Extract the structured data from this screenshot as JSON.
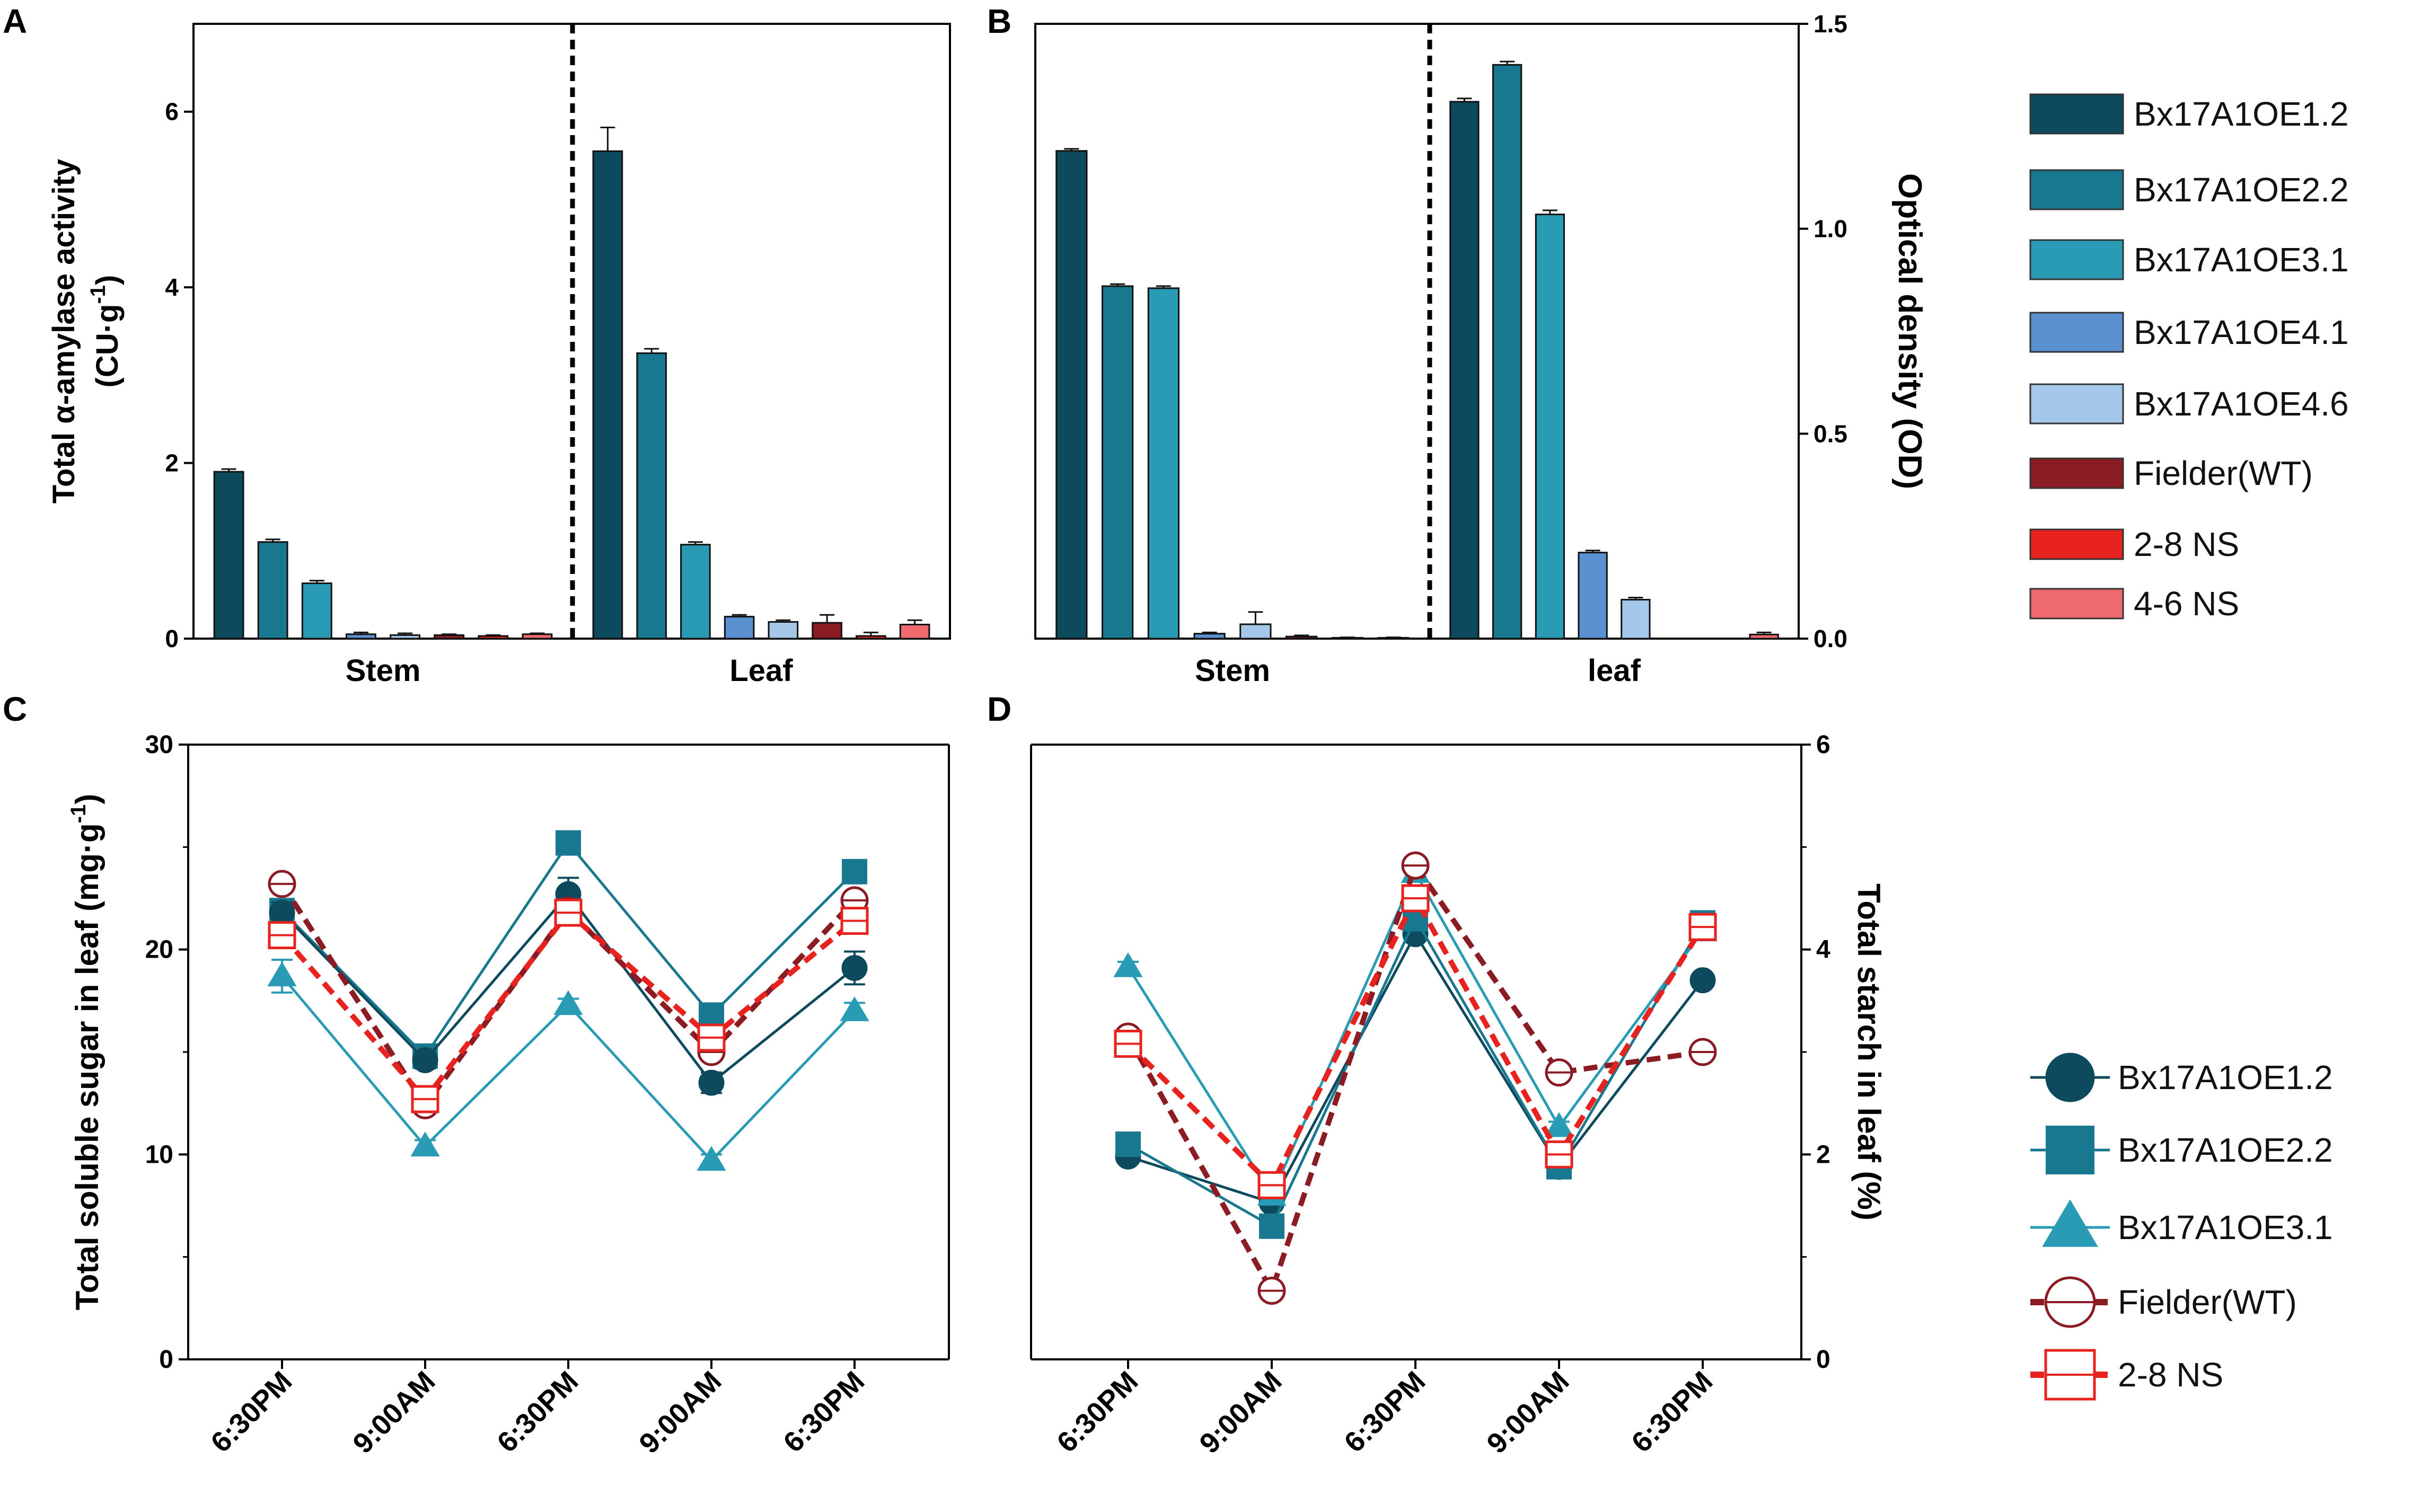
{
  "figure": {
    "colors": {
      "oe12": "#0e4a5e",
      "oe22": "#17788f",
      "oe31": "#2a9bb4",
      "oe41": "#5a8fd0",
      "oe46": "#a5c7ea",
      "wt": "#8c1c24",
      "ns28": "#e8231f",
      "ns46": "#ef6a6e"
    },
    "legend_top": {
      "items": [
        {
          "label": "Bx17A1OE1.2",
          "color_key": "oe12"
        },
        {
          "label": "Bx17A1OE2.2",
          "color_key": "oe22"
        },
        {
          "label": "Bx17A1OE3.1",
          "color_key": "oe31"
        },
        {
          "label": "Bx17A1OE4.1",
          "color_key": "oe41"
        },
        {
          "label": "Bx17A1OE4.6",
          "color_key": "oe46"
        },
        {
          "label": "Fielder(WT)",
          "color_key": "wt"
        },
        {
          "label": "2-8 NS",
          "color_key": "ns28"
        },
        {
          "label": "4-6 NS",
          "color_key": "ns46"
        }
      ]
    },
    "legend_bottom": {
      "items": [
        {
          "label": "Bx17A1OE1.2",
          "color_key": "oe12",
          "marker": "circle",
          "dashed": false
        },
        {
          "label": "Bx17A1OE2.2",
          "color_key": "oe22",
          "marker": "square",
          "dashed": false
        },
        {
          "label": "Bx17A1OE3.1",
          "color_key": "oe31",
          "marker": "triangle",
          "dashed": false
        },
        {
          "label": "Fielder(WT)",
          "color_key": "wt",
          "marker": "open-circle",
          "dashed": true
        },
        {
          "label": "2-8 NS",
          "color_key": "ns28",
          "marker": "open-square",
          "dashed": true
        }
      ]
    }
  },
  "chart_data": [
    {
      "panel": "A",
      "type": "bar",
      "ylabel_line1": "Total α-amylase activity",
      "ylabel_line2": "(CU·g",
      "ylabel_sup": "-1",
      "ylabel_close": ")",
      "ylim": [
        0,
        7
      ],
      "yticks": [
        0,
        2,
        4,
        6
      ],
      "groups": [
        {
          "name": "Stem",
          "values": [
            1.9,
            1.1,
            0.63,
            0.05,
            0.04,
            0.04,
            0.03,
            0.05
          ],
          "errors": [
            0.03,
            0.03,
            0.03,
            0.02,
            0.02,
            0.01,
            0.01,
            0.01
          ]
        },
        {
          "name": "Leaf",
          "values": [
            5.55,
            3.25,
            1.07,
            0.25,
            0.19,
            0.18,
            0.03,
            0.16
          ],
          "errors": [
            0.27,
            0.05,
            0.03,
            0.02,
            0.02,
            0.09,
            0.04,
            0.05
          ]
        }
      ]
    },
    {
      "panel": "B",
      "type": "bar",
      "ylabel": "Optical density (OD)",
      "ylim": [
        0,
        1.5
      ],
      "yticks": [
        0.0,
        0.5,
        1.0,
        1.5
      ],
      "ytick_labels": [
        "0.0",
        "0.5",
        "1.0",
        "1.5"
      ],
      "groups": [
        {
          "name": "Stem",
          "values": [
            1.19,
            0.86,
            0.855,
            0.012,
            0.035,
            0.005,
            0.002,
            0.002
          ],
          "errors": [
            0.005,
            0.005,
            0.005,
            0.003,
            0.03,
            0.003,
            0.001,
            0.001
          ]
        },
        {
          "name": "leaf",
          "values": [
            1.31,
            1.4,
            1.035,
            0.21,
            0.095,
            0.0,
            0.0,
            0.01
          ],
          "errors": [
            0.008,
            0.008,
            0.01,
            0.005,
            0.005,
            0.0,
            0.0,
            0.005
          ]
        }
      ]
    },
    {
      "panel": "C",
      "type": "line",
      "ylabel": "Total soluble sugar in leaf (mg·g",
      "ylabel_sup": "-1",
      "ylabel_close": ")",
      "ylim": [
        0,
        30
      ],
      "yticks": [
        0,
        10,
        20,
        30
      ],
      "categories": [
        "6:30PM",
        "9:00AM",
        "6:30PM",
        "9:00AM",
        "6:30PM"
      ],
      "series": [
        {
          "name": "Bx17A1OE2.2",
          "values": [
            21.9,
            14.8,
            25.2,
            16.8,
            23.8
          ],
          "errors": [
            0.4,
            0.3,
            0.4,
            0.4,
            0.3
          ]
        },
        {
          "name": "Bx17A1OE1.2",
          "values": [
            21.8,
            14.6,
            22.7,
            13.5,
            19.1
          ],
          "errors": [
            0.5,
            0.4,
            0.8,
            0.5,
            0.8
          ]
        },
        {
          "name": "Bx17A1OE3.1",
          "values": [
            18.7,
            10.4,
            17.3,
            9.7,
            17.0
          ],
          "errors": [
            0.8,
            0.3,
            0.3,
            0.3,
            0.4
          ]
        },
        {
          "name": "Fielder(WT)",
          "values": [
            23.2,
            12.4,
            21.9,
            15.0,
            22.4
          ],
          "errors": [
            0.4,
            0.4,
            0.4,
            0.4,
            0.4
          ]
        },
        {
          "name": "2-8 NS",
          "values": [
            20.7,
            12.7,
            21.8,
            15.7,
            21.4
          ],
          "errors": [
            0.4,
            0.4,
            0.4,
            0.4,
            0.4
          ]
        }
      ]
    },
    {
      "panel": "D",
      "type": "line",
      "ylabel": "Total starch in leaf (%)",
      "ylim": [
        0,
        6
      ],
      "yticks": [
        0,
        2,
        4,
        6
      ],
      "categories": [
        "6:30PM",
        "9:00AM",
        "6:30PM",
        "9:00AM",
        "6:30PM"
      ],
      "series": [
        {
          "name": "Bx17A1OE1.2",
          "values": [
            1.98,
            1.53,
            4.15,
            1.88,
            3.7
          ],
          "errors": [
            0.05,
            0.05,
            0.05,
            0.05,
            0.05
          ]
        },
        {
          "name": "Bx17A1OE2.2",
          "values": [
            2.1,
            1.3,
            4.3,
            1.88,
            4.26
          ],
          "errors": [
            0.05,
            0.05,
            0.05,
            0.05,
            0.05
          ]
        },
        {
          "name": "Bx17A1OE3.1",
          "values": [
            3.83,
            1.6,
            4.75,
            2.27,
            4.18
          ],
          "errors": [
            0.05,
            0.05,
            0.05,
            0.05,
            0.05
          ]
        },
        {
          "name": "Fielder(WT)",
          "values": [
            3.15,
            0.67,
            4.82,
            2.8,
            3.0
          ],
          "errors": [
            0.06,
            0.05,
            0.05,
            0.05,
            0.05
          ]
        },
        {
          "name": "2-8 NS",
          "values": [
            3.08,
            1.7,
            4.5,
            2.0,
            4.22
          ],
          "errors": [
            0.06,
            0.05,
            0.05,
            0.05,
            0.05
          ]
        }
      ]
    }
  ]
}
